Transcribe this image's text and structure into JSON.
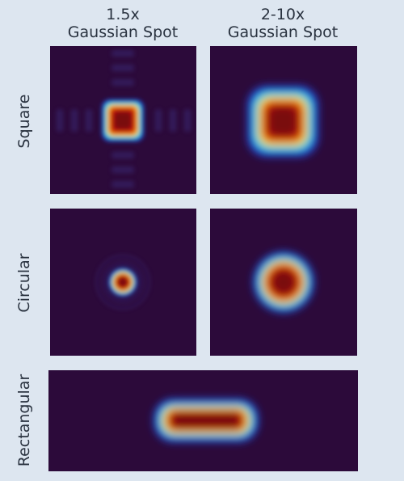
{
  "columns": [
    {
      "lines": [
        "1.5x",
        "Gaussian Spot"
      ]
    },
    {
      "lines": [
        "2-10x",
        "Gaussian Spot"
      ]
    }
  ],
  "rows": [
    "Square",
    "Circular",
    "Rectangular"
  ]
}
